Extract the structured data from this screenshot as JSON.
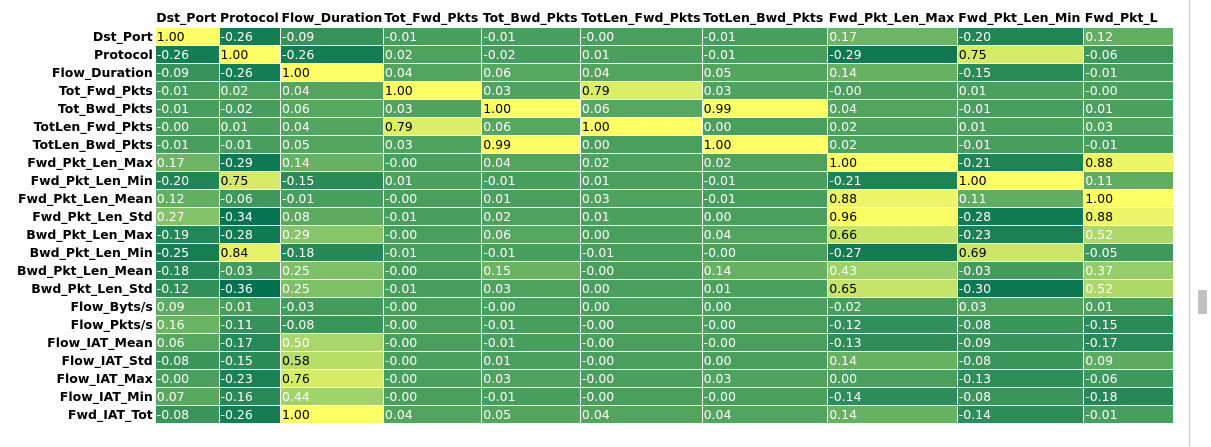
{
  "chart_data": {
    "type": "heatmap",
    "columns": [
      "Dst_Port",
      "Protocol",
      "Flow_Duration",
      "Tot_Fwd_Pkts",
      "Tot_Bwd_Pkts",
      "TotLen_Fwd_Pkts",
      "TotLen_Bwd_Pkts",
      "Fwd_Pkt_Len_Max",
      "Fwd_Pkt_Len_Min",
      "Fwd_Pkt_L"
    ],
    "rows": [
      {
        "label": "Dst_Port",
        "values": [
          "1.00",
          "-0.26",
          "-0.09",
          "-0.01",
          "-0.01",
          "-0.00",
          "-0.01",
          "0.17",
          "-0.20",
          "0.12"
        ]
      },
      {
        "label": "Protocol",
        "values": [
          "-0.26",
          "1.00",
          "-0.26",
          "0.02",
          "-0.02",
          "0.01",
          "-0.01",
          "-0.29",
          "0.75",
          "-0.06"
        ]
      },
      {
        "label": "Flow_Duration",
        "values": [
          "-0.09",
          "-0.26",
          "1.00",
          "0.04",
          "0.06",
          "0.04",
          "0.05",
          "0.14",
          "-0.15",
          "-0.01"
        ]
      },
      {
        "label": "Tot_Fwd_Pkts",
        "values": [
          "-0.01",
          "0.02",
          "0.04",
          "1.00",
          "0.03",
          "0.79",
          "0.03",
          "-0.00",
          "0.01",
          "-0.00"
        ]
      },
      {
        "label": "Tot_Bwd_Pkts",
        "values": [
          "-0.01",
          "-0.02",
          "0.06",
          "0.03",
          "1.00",
          "0.06",
          "0.99",
          "0.04",
          "-0.01",
          "0.01"
        ]
      },
      {
        "label": "TotLen_Fwd_Pkts",
        "values": [
          "-0.00",
          "0.01",
          "0.04",
          "0.79",
          "0.06",
          "1.00",
          "0.00",
          "0.02",
          "0.01",
          "0.03"
        ]
      },
      {
        "label": "TotLen_Bwd_Pkts",
        "values": [
          "-0.01",
          "-0.01",
          "0.05",
          "0.03",
          "0.99",
          "0.00",
          "1.00",
          "0.02",
          "-0.01",
          "-0.01"
        ]
      },
      {
        "label": "Fwd_Pkt_Len_Max",
        "values": [
          "0.17",
          "-0.29",
          "0.14",
          "-0.00",
          "0.04",
          "0.02",
          "0.02",
          "1.00",
          "-0.21",
          "0.88"
        ]
      },
      {
        "label": "Fwd_Pkt_Len_Min",
        "values": [
          "-0.20",
          "0.75",
          "-0.15",
          "0.01",
          "-0.01",
          "0.01",
          "-0.01",
          "-0.21",
          "1.00",
          "0.11"
        ]
      },
      {
        "label": "Fwd_Pkt_Len_Mean",
        "values": [
          "0.12",
          "-0.06",
          "-0.01",
          "-0.00",
          "0.01",
          "0.03",
          "-0.01",
          "0.88",
          "0.11",
          "1.00"
        ]
      },
      {
        "label": "Fwd_Pkt_Len_Std",
        "values": [
          "0.27",
          "-0.34",
          "0.08",
          "-0.01",
          "0.02",
          "0.01",
          "0.00",
          "0.96",
          "-0.28",
          "0.88"
        ]
      },
      {
        "label": "Bwd_Pkt_Len_Max",
        "values": [
          "-0.19",
          "-0.28",
          "0.29",
          "-0.00",
          "0.06",
          "0.00",
          "0.04",
          "0.66",
          "-0.23",
          "0.52"
        ]
      },
      {
        "label": "Bwd_Pkt_Len_Min",
        "values": [
          "-0.25",
          "0.84",
          "-0.18",
          "-0.01",
          "-0.01",
          "-0.01",
          "-0.00",
          "-0.27",
          "0.69",
          "-0.05"
        ]
      },
      {
        "label": "Bwd_Pkt_Len_Mean",
        "values": [
          "-0.18",
          "-0.03",
          "0.25",
          "-0.00",
          "0.15",
          "-0.00",
          "0.14",
          "0.43",
          "-0.03",
          "0.37"
        ]
      },
      {
        "label": "Bwd_Pkt_Len_Std",
        "values": [
          "-0.12",
          "-0.36",
          "0.25",
          "-0.01",
          "0.03",
          "0.00",
          "0.01",
          "0.65",
          "-0.30",
          "0.52"
        ]
      },
      {
        "label": "Flow_Byts/s",
        "values": [
          "0.09",
          "-0.01",
          "-0.03",
          "-0.00",
          "-0.00",
          "0.00",
          "0.00",
          "-0.02",
          "0.03",
          "0.01"
        ]
      },
      {
        "label": "Flow_Pkts/s",
        "values": [
          "0.16",
          "-0.11",
          "-0.08",
          "-0.00",
          "-0.01",
          "-0.00",
          "-0.00",
          "-0.12",
          "-0.08",
          "-0.15"
        ]
      },
      {
        "label": "Flow_IAT_Mean",
        "values": [
          "0.06",
          "-0.17",
          "0.50",
          "-0.00",
          "-0.01",
          "-0.00",
          "-0.00",
          "-0.13",
          "-0.09",
          "-0.17"
        ]
      },
      {
        "label": "Flow_IAT_Std",
        "values": [
          "-0.08",
          "-0.15",
          "0.58",
          "-0.00",
          "0.01",
          "-0.00",
          "0.00",
          "0.14",
          "-0.08",
          "0.09"
        ]
      },
      {
        "label": "Flow_IAT_Max",
        "values": [
          "-0.00",
          "-0.23",
          "0.76",
          "-0.00",
          "0.03",
          "-0.00",
          "0.03",
          "0.00",
          "-0.13",
          "-0.06"
        ]
      },
      {
        "label": "Flow_IAT_Min",
        "values": [
          "0.07",
          "-0.16",
          "0.44",
          "-0.00",
          "-0.01",
          "-0.00",
          "-0.00",
          "-0.14",
          "-0.08",
          "-0.18"
        ]
      },
      {
        "label": "Fwd_IAT_Tot",
        "values": [
          "-0.08",
          "-0.26",
          "1.00",
          "0.04",
          "0.05",
          "0.04",
          "0.04",
          "0.14",
          "-0.14",
          "-0.01"
        ]
      }
    ],
    "color_scale": {
      "min": -0.36,
      "max": 1.0,
      "low_color": "#00704f",
      "mid_color": "#8cc96a",
      "high_color": "#ffff66"
    },
    "scale": "linear"
  }
}
